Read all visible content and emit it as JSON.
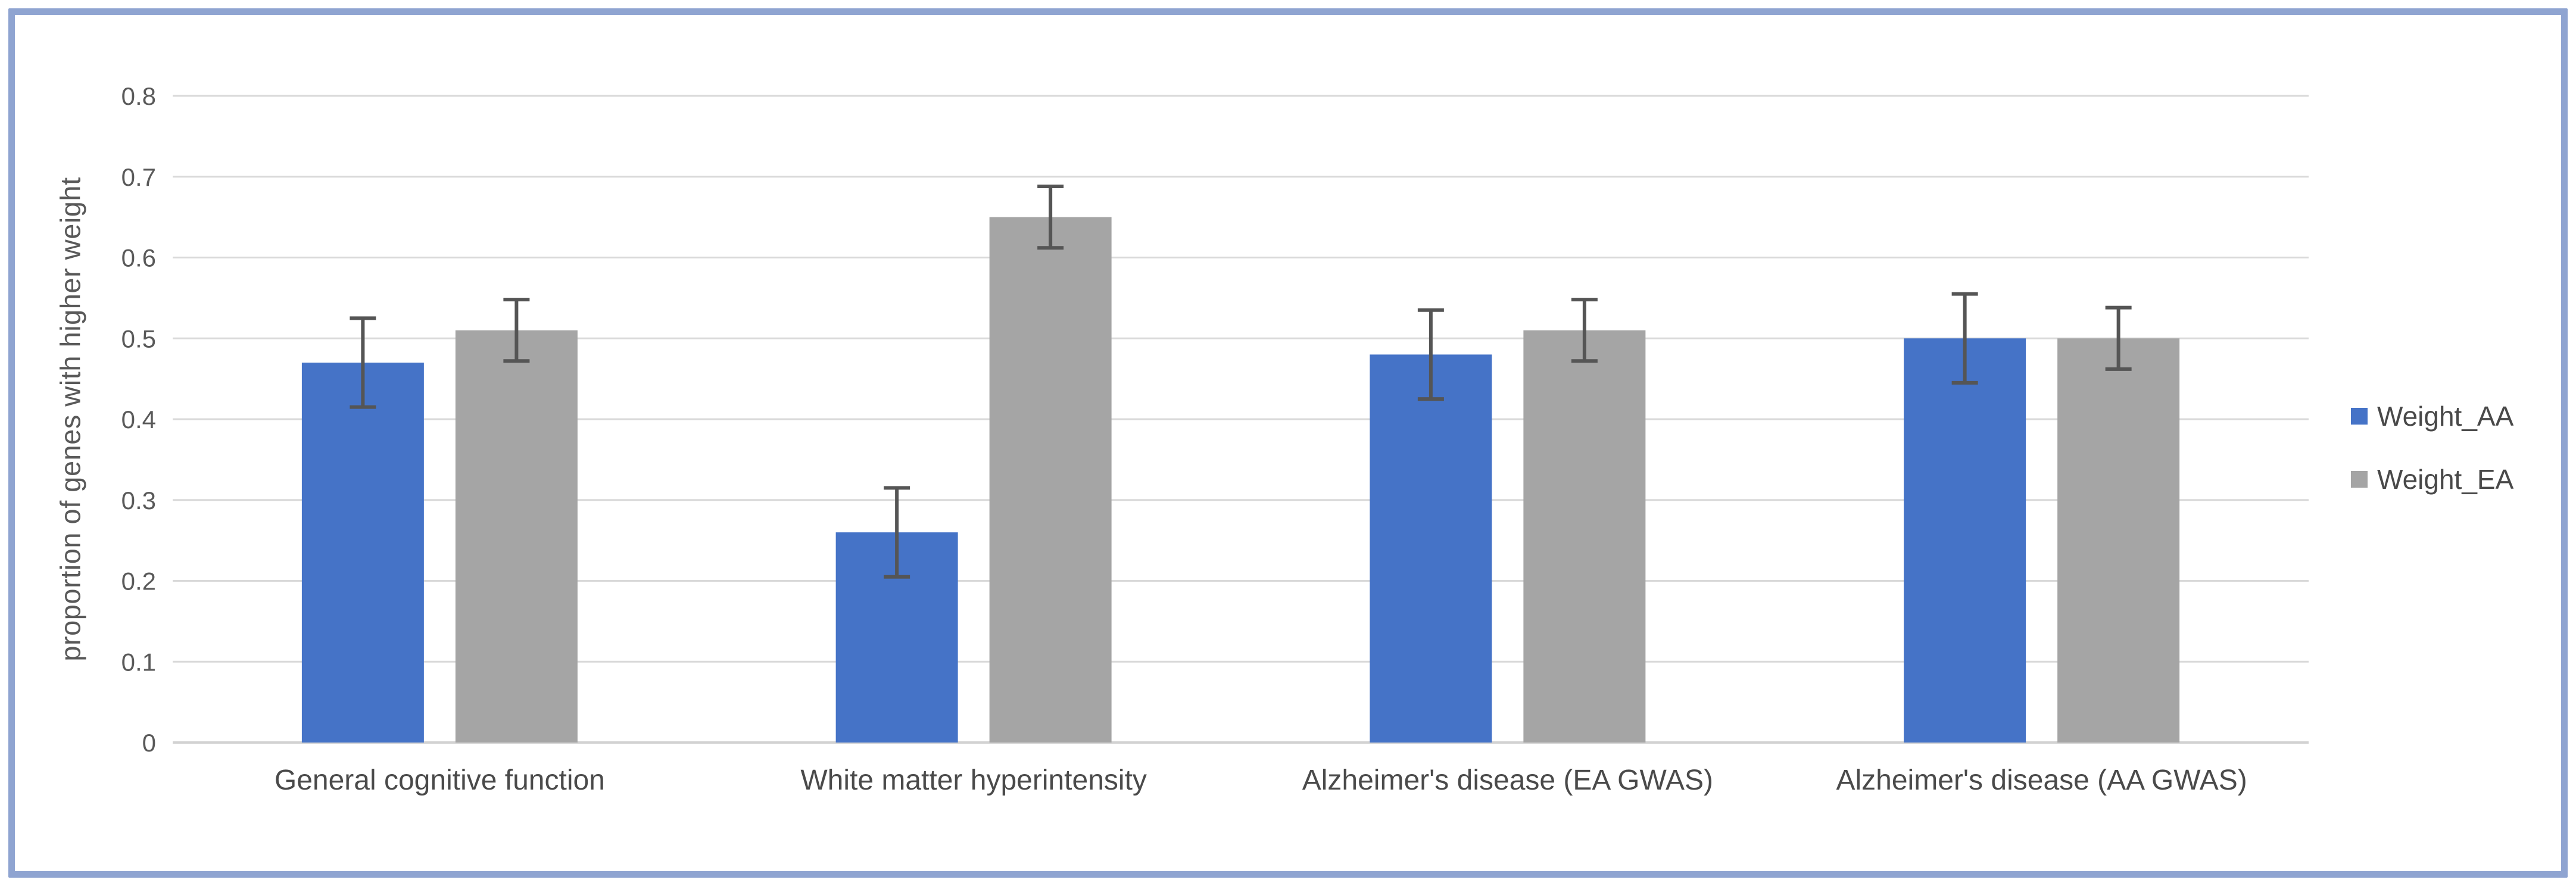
{
  "chart_data": {
    "type": "bar",
    "title": "",
    "xlabel": "",
    "ylabel": "proportion of genes with higher weight",
    "categories": [
      "General cognitive function",
      "White matter hyperintensity",
      "Alzheimer's disease (EA GWAS)",
      "Alzheimer's disease (AA GWAS)"
    ],
    "series": [
      {
        "name": "Weight_AA",
        "color": "#4573C7",
        "values": [
          0.47,
          0.26,
          0.48,
          0.5
        ],
        "errors": [
          0.055,
          0.055,
          0.055,
          0.055
        ]
      },
      {
        "name": "Weight_EA",
        "color": "#A5A5A5",
        "values": [
          0.51,
          0.65,
          0.51,
          0.5
        ],
        "errors": [
          0.038,
          0.038,
          0.038,
          0.038
        ]
      }
    ],
    "ylim": [
      0,
      0.8
    ],
    "ytick_step": 0.1,
    "ytick_labels": [
      "0",
      "0.1",
      "0.2",
      "0.3",
      "0.4",
      "0.5",
      "0.6",
      "0.7",
      "0.8"
    ],
    "grid": true,
    "legend_position": "right",
    "colors": {
      "gridline": "#D9D9D9",
      "axis_line": "#D2D2D2",
      "error_bar": "#555555",
      "tick_text": "#595959",
      "category_text": "#4A4A4A",
      "frame_border": "#8FA4D1",
      "background": "#FFFFFF"
    }
  }
}
